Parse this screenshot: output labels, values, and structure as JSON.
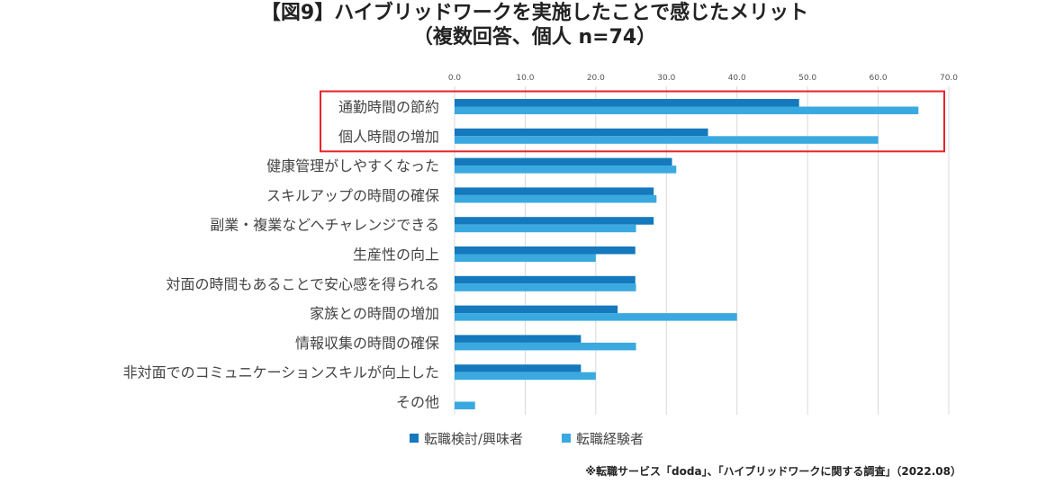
{
  "chart_data": {
    "type": "bar",
    "orientation": "horizontal",
    "title": "【図9】ハイブリッドワークを実施したことで感じたメリット",
    "subtitle": "（複数回答、個人 n=74）",
    "xlim": [
      0,
      70
    ],
    "xticks": [
      "0.0",
      "10.0",
      "20.0",
      "30.0",
      "40.0",
      "50.0",
      "60.0",
      "70.0"
    ],
    "grid": true,
    "categories": [
      "通勤時間の節約",
      "個人時間の増加",
      "健康管理がしやすくなった",
      "スキルアップの時間の確保",
      "副業・複業などへチャレンジできる",
      "生産性の向上",
      "対面の時間もあることで安心感を得られる",
      "家族との時間の増加",
      "情報収集の時間の確保",
      "非対面でのコミュニケーションスキルが向上した",
      "その他"
    ],
    "series": [
      {
        "name": "転職検討/興味者",
        "color": "#1479BD",
        "values": [
          48.8,
          35.9,
          30.8,
          28.2,
          28.2,
          25.6,
          25.6,
          23.1,
          17.9,
          17.9,
          0
        ]
      },
      {
        "name": "転職経験者",
        "color": "#3AA9E0",
        "values": [
          65.7,
          60.0,
          31.4,
          28.6,
          25.7,
          20.0,
          25.7,
          40.0,
          25.7,
          20.0,
          2.9
        ]
      }
    ],
    "highlight": {
      "categories": [
        "通勤時間の節約",
        "個人時間の増加"
      ],
      "color": "#E8232A"
    },
    "legend_position": "bottom",
    "note": "※転職サービス「doda」、「ハイブリッドワークに関する調査」（2022.08）"
  }
}
